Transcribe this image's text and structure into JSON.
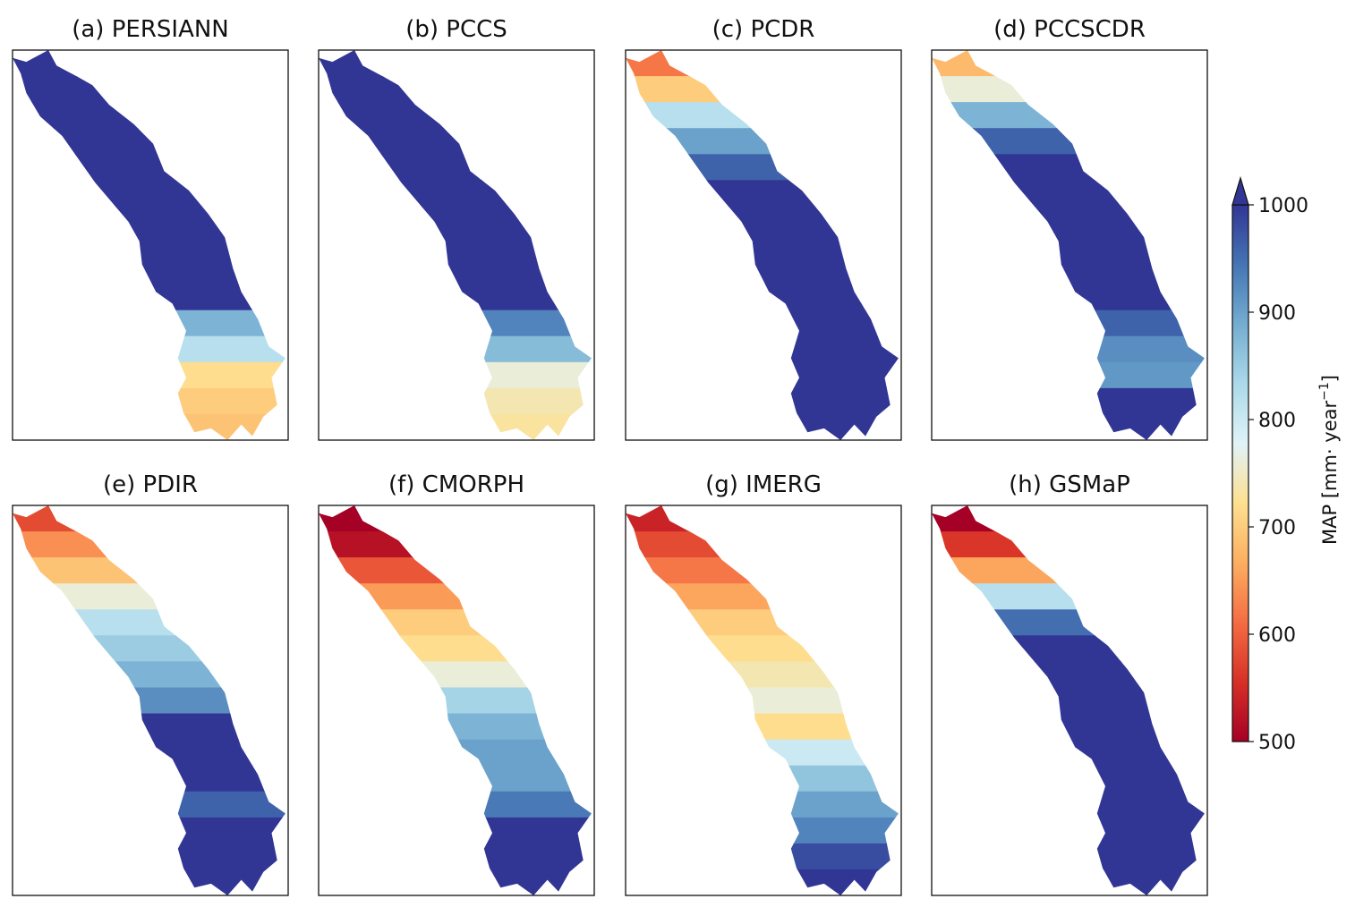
{
  "chart_data": {
    "type": "heatmap",
    "colormap": "RdYlBu",
    "colormap_stops": [
      "#a50026",
      "#d73027",
      "#f46d43",
      "#fdae61",
      "#fee090",
      "#e0f3f8",
      "#abd9e9",
      "#74add1",
      "#4575b4",
      "#313695"
    ],
    "colorbar": {
      "label_main": "MAP [mm· year",
      "label_sup": "−1",
      "label_close": "]",
      "vmin": 500,
      "vmax": 1000,
      "extend": "max",
      "ticks": [
        "500",
        "600",
        "700",
        "800",
        "900",
        "1000"
      ]
    },
    "panels": [
      {
        "title": "(a) PERSIANN",
        "upstream_to_downstream_mm": [
          1000,
          1000,
          1000,
          1000,
          1000,
          1000,
          1000,
          1000,
          1000,
          1000,
          880,
          820,
          720,
          700,
          690
        ]
      },
      {
        "title": "(b) PCCS",
        "upstream_to_downstream_mm": [
          1000,
          1000,
          1000,
          1000,
          1000,
          1000,
          1000,
          1000,
          1000,
          1000,
          930,
          870,
          760,
          740,
          730
        ]
      },
      {
        "title": "(c) PCDR",
        "upstream_to_downstream_mm": [
          620,
          700,
          820,
          900,
          960,
          1000,
          1000,
          1000,
          1000,
          1000,
          1000,
          1000,
          1000,
          1000,
          1000
        ]
      },
      {
        "title": "(d) PCCSCDR",
        "upstream_to_downstream_mm": [
          680,
          760,
          880,
          960,
          1000,
          1000,
          1000,
          1000,
          1000,
          1000,
          960,
          920,
          910,
          1000,
          1000
        ]
      },
      {
        "title": "(e) PDIR",
        "upstream_to_downstream_mm": [
          580,
          640,
          690,
          760,
          820,
          850,
          880,
          920,
          1000,
          1000,
          1000,
          960,
          1000,
          1000,
          1000
        ]
      },
      {
        "title": "(f) CMORPH",
        "upstream_to_downstream_mm": [
          500,
          520,
          590,
          650,
          700,
          720,
          760,
          840,
          880,
          900,
          900,
          940,
          1000,
          1000,
          1000
        ]
      },
      {
        "title": "(g) IMERG",
        "upstream_to_downstream_mm": [
          540,
          580,
          620,
          660,
          700,
          720,
          740,
          760,
          720,
          800,
          860,
          900,
          930,
          980,
          1000
        ]
      },
      {
        "title": "(h) GSMaP",
        "upstream_to_downstream_mm": [
          500,
          560,
          660,
          820,
          950,
          1000,
          1000,
          1000,
          1000,
          1000,
          1000,
          1000,
          1000,
          1000,
          1000
        ]
      }
    ]
  }
}
